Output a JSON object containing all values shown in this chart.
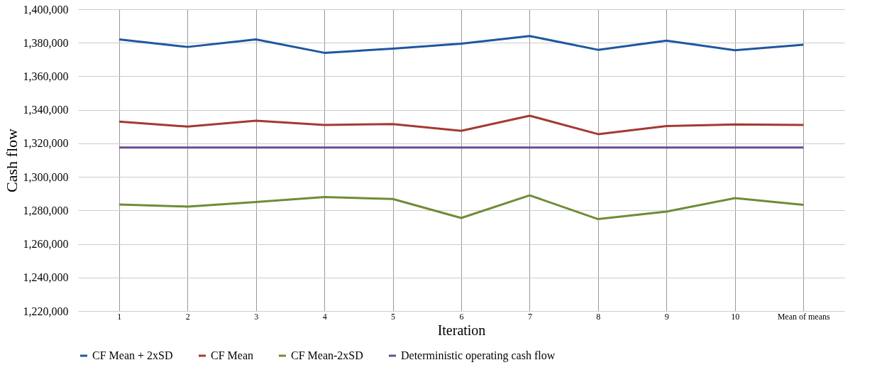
{
  "chart_data": {
    "type": "line",
    "xlabel": "Iteration",
    "ylabel": "Cash flow",
    "categories": [
      "1",
      "2",
      "3",
      "4",
      "5",
      "6",
      "7",
      "8",
      "9",
      "10",
      "Mean of means"
    ],
    "series": [
      {
        "name": "CF Mean + 2xSD",
        "color": "#1f57a0",
        "values": [
          1382000,
          1377500,
          1382000,
          1374000,
          1376500,
          1379500,
          1384000,
          1375800,
          1381300,
          1375500,
          1378800
        ]
      },
      {
        "name": "CF Mean",
        "color": "#a33a32",
        "values": [
          1333000,
          1330000,
          1333500,
          1331000,
          1331500,
          1327500,
          1336500,
          1325500,
          1330300,
          1331300,
          1331000
        ]
      },
      {
        "name": "CF Mean-2xSD",
        "color": "#6f8c35",
        "values": [
          1283500,
          1282300,
          1285000,
          1288000,
          1286800,
          1275500,
          1289000,
          1274800,
          1279300,
          1287300,
          1283300
        ]
      },
      {
        "name": "Deterministic operating cash flow",
        "color": "#6a4c93",
        "values": [
          1317500,
          1317500,
          1317500,
          1317500,
          1317500,
          1317500,
          1317500,
          1317500,
          1317500,
          1317500,
          1317500
        ]
      }
    ],
    "ylim": [
      1220000,
      1400000
    ],
    "yticks": [
      {
        "value": 1220000,
        "label": "1,220,000"
      },
      {
        "value": 1240000,
        "label": "1,240,000"
      },
      {
        "value": 1260000,
        "label": "1,260,000"
      },
      {
        "value": 1280000,
        "label": "1,280,000"
      },
      {
        "value": 1300000,
        "label": "1,300,000"
      },
      {
        "value": 1320000,
        "label": "1,320,000"
      },
      {
        "value": 1340000,
        "label": "1,340,000"
      },
      {
        "value": 1360000,
        "label": "1,360,000"
      },
      {
        "value": 1380000,
        "label": "1,380,000"
      },
      {
        "value": 1400000,
        "label": "1,400,000"
      }
    ],
    "grid": true,
    "legend": "bottom",
    "marker": "none",
    "line_style": "solid"
  }
}
